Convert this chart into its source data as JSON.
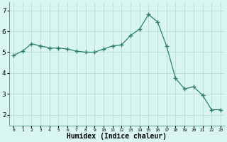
{
  "x": [
    0,
    1,
    2,
    3,
    4,
    5,
    6,
    7,
    8,
    9,
    10,
    11,
    12,
    13,
    14,
    15,
    16,
    17,
    18,
    19,
    20,
    21,
    22,
    23
  ],
  "y": [
    4.85,
    5.05,
    5.4,
    5.3,
    5.2,
    5.2,
    5.15,
    5.05,
    5.0,
    5.0,
    5.15,
    5.3,
    5.35,
    5.8,
    6.1,
    6.8,
    6.45,
    5.3,
    3.75,
    3.25,
    3.35,
    2.95,
    2.25,
    2.25
  ],
  "line_color": "#2e7d6e",
  "marker": "+",
  "marker_size": 4,
  "bg_color": "#d8f5f0",
  "grid_color": "#b8ddd8",
  "xlabel": "Humidex (Indice chaleur)",
  "xlabel_fontsize": 7,
  "ylim": [
    1.5,
    7.4
  ],
  "xlim": [
    -0.5,
    23.5
  ],
  "yticks": [
    2,
    3,
    4,
    5,
    6,
    7
  ],
  "xticks": [
    0,
    1,
    2,
    3,
    4,
    5,
    6,
    7,
    8,
    9,
    10,
    11,
    12,
    13,
    14,
    15,
    16,
    17,
    18,
    19,
    20,
    21,
    22,
    23
  ]
}
